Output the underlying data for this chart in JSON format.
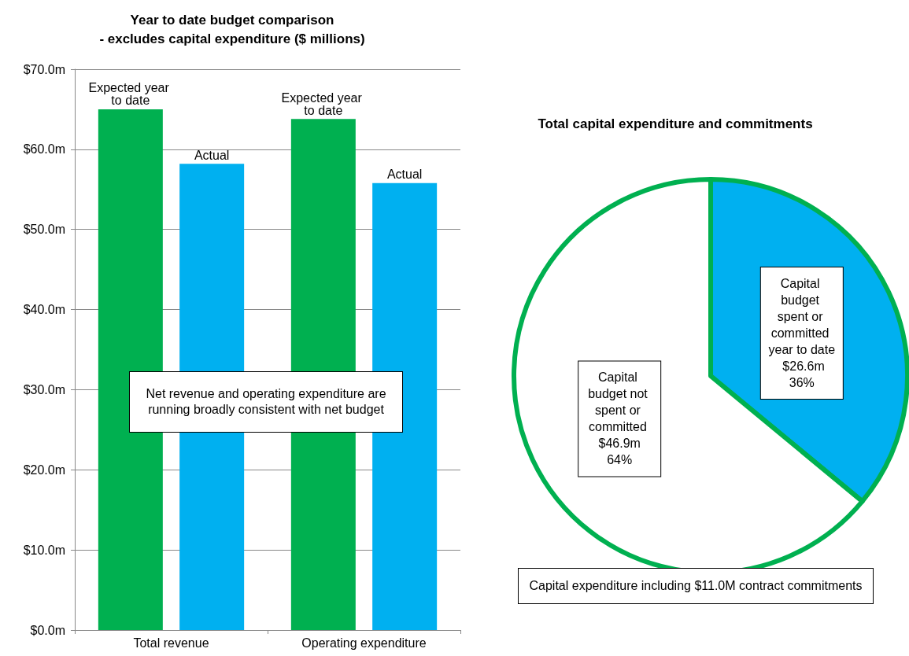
{
  "chart_data": [
    {
      "type": "bar",
      "title": "Year to date budget comparison\n- excludes capital expenditure ($ millions)",
      "categories": [
        "Total revenue",
        "Operating expenditure"
      ],
      "series": [
        {
          "name": "Expected year to date",
          "color": "#00b050",
          "values": [
            65.0,
            63.8
          ]
        },
        {
          "name": "Actual",
          "color": "#00b0f0",
          "values": [
            58.2,
            55.8
          ]
        }
      ],
      "ylim": [
        0,
        70
      ],
      "yticks": [
        {
          "value": 0,
          "label": "$0.0m"
        },
        {
          "value": 10,
          "label": "$10.0m"
        },
        {
          "value": 20,
          "label": "$20.0m"
        },
        {
          "value": 30,
          "label": "$30.0m"
        },
        {
          "value": 40,
          "label": "$40.0m"
        },
        {
          "value": 50,
          "label": "$50.0m"
        },
        {
          "value": 60,
          "label": "$60.0m"
        },
        {
          "value": 70,
          "label": "$70.0m"
        }
      ],
      "grid": "y",
      "legend": false,
      "annotations": [
        "Net revenue and operating expenditure are running broadly consistent with net budget"
      ]
    },
    {
      "type": "pie",
      "title": "Total capital expenditure and commitments",
      "categories": [
        "Capital budget spent or committed year to date $26.6m",
        "Capital budget not spent or committed $46.9m"
      ],
      "values": [
        36,
        64
      ],
      "colors": [
        "#00b0f0",
        "#ffffff"
      ],
      "value_labels": [
        "36%",
        "64%"
      ],
      "legend": false,
      "annotations": [
        "Capital expenditure including $11.0M contract commitments"
      ]
    }
  ]
}
